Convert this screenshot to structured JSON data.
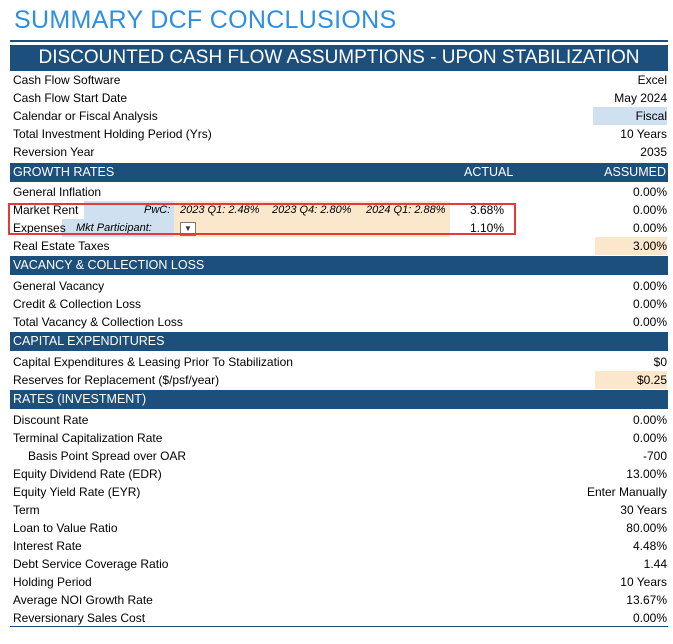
{
  "title": "SUMMARY DCF CONCLUSIONS",
  "banner": "DISCOUNTED CASH FLOW ASSUMPTIONS - UPON STABILIZATION",
  "top_rows": [
    {
      "label": "Cash Flow Software",
      "value": "Excel"
    },
    {
      "label": "Cash Flow Start Date",
      "value": "May 2024"
    },
    {
      "label": "Calendar or Fiscal Analysis",
      "value": "Fiscal"
    },
    {
      "label": "Total Investment Holding Period (Yrs)",
      "value": "10 Years"
    },
    {
      "label": "Reversion Year",
      "value": "2035"
    }
  ],
  "growth": {
    "header": "GROWTH RATES",
    "col_actual": "ACTUAL",
    "col_assumed": "ASSUMED",
    "general_inflation": {
      "label": "General Inflation",
      "assumed": "0.00%"
    },
    "market_rent": {
      "label": "Market Rent",
      "pwc_label": "PwC:",
      "q1": "2023 Q1: 2.48%",
      "q4": "2023 Q4: 2.80%",
      "q1b": "2024 Q1: 2.88%",
      "actual": "3.68%",
      "assumed": "0.00%"
    },
    "expenses": {
      "label": "Expenses",
      "mkt_label": "Mkt Participant:",
      "actual": "1.10%",
      "assumed": "0.00%"
    },
    "real_estate_taxes": {
      "label": "Real Estate Taxes",
      "assumed": "3.00%"
    }
  },
  "vacancy": {
    "header": "VACANCY & COLLECTION LOSS",
    "rows": [
      {
        "label": "General Vacancy",
        "value": "0.00%"
      },
      {
        "label": "Credit & Collection Loss",
        "value": "0.00%"
      },
      {
        "label": "Total Vacancy & Collection Loss",
        "value": "0.00%"
      }
    ]
  },
  "capex": {
    "header": "CAPITAL EXPENDITURES",
    "rows": [
      {
        "label": "Capital Expenditures & Leasing Prior To Stabilization",
        "value": "$0"
      },
      {
        "label": "Reserves for Replacement ($/psf/year)",
        "value": "$0.25"
      }
    ]
  },
  "rates": {
    "header": "RATES (INVESTMENT)",
    "rows": [
      {
        "label": "Discount Rate",
        "value": "0.00%"
      },
      {
        "label": "Terminal Capitalization Rate",
        "value": "0.00%"
      },
      {
        "label": "Basis Point Spread over OAR",
        "value": "-700"
      },
      {
        "label": "Equity Dividend Rate (EDR)",
        "value": "13.00%"
      },
      {
        "label": "Equity Yield Rate (EYR)",
        "value": "Enter Manually"
      },
      {
        "label": "Term",
        "value": "30 Years"
      },
      {
        "label": "Loan to Value Ratio",
        "value": "80.00%"
      },
      {
        "label": "Interest Rate",
        "value": "4.48%"
      },
      {
        "label": "Debt Service Coverage Ratio",
        "value": "1.44"
      },
      {
        "label": "Holding Period",
        "value": "10 Years"
      },
      {
        "label": "Average NOI Growth Rate",
        "value": "13.67%"
      },
      {
        "label": "Reversionary Sales Cost",
        "value": "0.00%"
      }
    ]
  }
}
